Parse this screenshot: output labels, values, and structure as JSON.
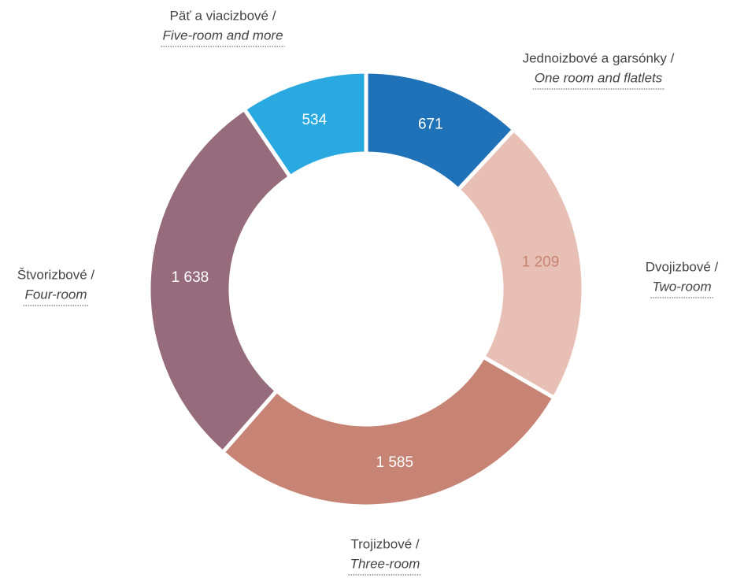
{
  "chart_data": {
    "type": "donut",
    "categories": [
      "Jednoizbové a garsónky /",
      "Dvojizbové /",
      "Trojizbové /",
      "Štvorizbové /",
      "Päť a viacizbové /"
    ],
    "categories_en": [
      "One room and flatlets",
      "Two-room",
      "Three-room",
      "Four-room",
      "Five-room and more"
    ],
    "values": [
      671,
      1209,
      1585,
      1638,
      534
    ],
    "value_labels": [
      "671",
      "1 209",
      "1 585",
      "1 638",
      "534"
    ],
    "colors": [
      "#1f72b8",
      "#e8bfb5",
      "#c78474",
      "#966c7d",
      "#2aa9e0"
    ],
    "value_label_colors": [
      "#ffffff",
      "#c78474",
      "#ffffff",
      "#ffffff",
      "#ffffff"
    ]
  }
}
